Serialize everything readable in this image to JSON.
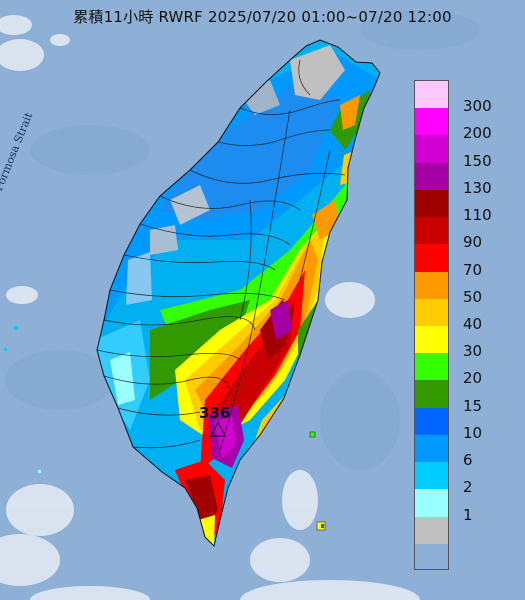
{
  "title": "累積11小時 RWRF 2025/07/20 01:00~07/20 12:00",
  "strait_label": "Formosa Strait",
  "max_marker": {
    "value": "336",
    "symbol": "triangle"
  },
  "legend": [
    {
      "label": "300",
      "color": "#fcc8fc"
    },
    {
      "label": "200",
      "color": "#ff00ff"
    },
    {
      "label": "150",
      "color": "#d000d0"
    },
    {
      "label": "130",
      "color": "#a500a5"
    },
    {
      "label": "110",
      "color": "#a00000"
    },
    {
      "label": "90",
      "color": "#c90000"
    },
    {
      "label": "70",
      "color": "#ff0000"
    },
    {
      "label": "50",
      "color": "#ff9900"
    },
    {
      "label": "40",
      "color": "#ffcc00"
    },
    {
      "label": "30",
      "color": "#ffff00"
    },
    {
      "label": "20",
      "color": "#33ff00"
    },
    {
      "label": "15",
      "color": "#339900"
    },
    {
      "label": "10",
      "color": "#0066ff"
    },
    {
      "label": "6",
      "color": "#0099ff"
    },
    {
      "label": "2",
      "color": "#00ccff"
    },
    {
      "label": "1",
      "color": "#99ffff"
    },
    {
      "label": "",
      "color": "#c0c0c0"
    }
  ],
  "colors": {
    "sea": "#8fb0d6",
    "cloud": "#dfe8f3",
    "border": "#1b1b1b"
  }
}
